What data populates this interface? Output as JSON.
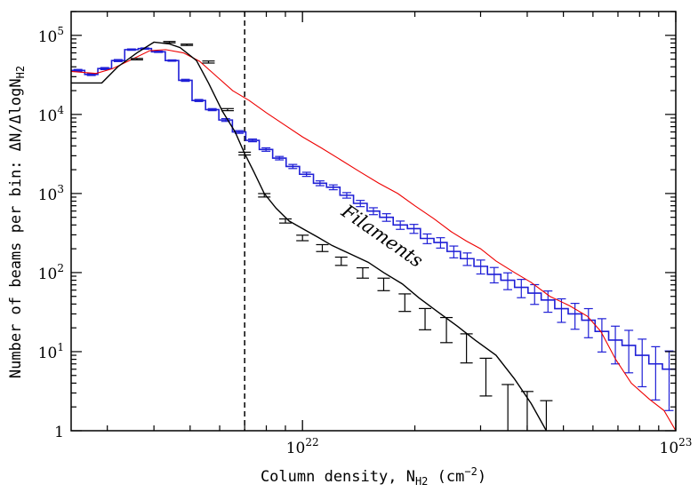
{
  "chart_data": {
    "type": "line",
    "title": "",
    "xlabel_main": "Column density, N",
    "xlabel_sub": "H2",
    "xlabel_units": "(cm",
    "xlabel_exp": "−2",
    "xlabel_close": ")",
    "ylabel_main": "Number of beams per bin: ΔN/ΔlogN",
    "ylabel_sub": "H2",
    "x_scale": "log",
    "y_scale": "log",
    "xlim": [
      2.4e+21,
      1e+23
    ],
    "ylim": [
      1,
      200000
    ],
    "x_ticks": [
      {
        "value": 1e+22,
        "base": "10",
        "exp": "22"
      },
      {
        "value": 1e+23,
        "base": "10",
        "exp": "23"
      }
    ],
    "y_ticks": [
      {
        "value": 1,
        "base": "1",
        "exp": ""
      },
      {
        "value": 10,
        "base": "10",
        "exp": "1"
      },
      {
        "value": 100,
        "base": "10",
        "exp": "2"
      },
      {
        "value": 1000,
        "base": "10",
        "exp": "3"
      },
      {
        "value": 10000,
        "base": "10",
        "exp": "4"
      },
      {
        "value": 100000,
        "base": "10",
        "exp": "5"
      }
    ],
    "threshold_line": {
      "x": 7e+21,
      "style": "dashed"
    },
    "annotation": {
      "text": "Filaments",
      "x": 1.6e+22,
      "y": 250,
      "angle": 35
    },
    "series": [
      {
        "name": "blue-histogram",
        "color": "#1f1fd6",
        "style": "step",
        "bin_edges": [
          2.4e+21,
          2.61e+21,
          2.83e+21,
          3.08e+21,
          3.34e+21,
          3.63e+21,
          3.94e+21,
          4.29e+21,
          4.66e+21,
          5.06e+21,
          5.5e+21,
          5.97e+21,
          6.49e+21,
          7.05e+21,
          7.66e+21,
          8.32e+21,
          9.04e+21,
          9.82e+21,
          1.07e+22,
          1.16e+22,
          1.26e+22,
          1.37e+22,
          1.49e+22,
          1.61e+22,
          1.75e+22,
          1.91e+22,
          2.07e+22,
          2.25e+22,
          2.44e+22,
          2.65e+22,
          2.88e+22,
          3.13e+22,
          3.4e+22,
          3.7e+22,
          4.02e+22,
          4.36e+22,
          4.74e+22,
          5.15e+22,
          5.6e+22,
          6.08e+22,
          6.61e+22,
          7.18e+22,
          7.8e+22,
          8.47e+22,
          9.21e+22,
          1e+23
        ],
        "values": [
          36000,
          32000,
          38000,
          48000,
          66000,
          68000,
          62000,
          48000,
          27000,
          15000,
          11500,
          8500,
          6000,
          4700,
          3600,
          2800,
          2200,
          1750,
          1350,
          1200,
          950,
          750,
          600,
          500,
          400,
          360,
          270,
          240,
          185,
          150,
          120,
          95,
          80,
          65,
          55,
          45,
          35,
          30,
          25,
          18,
          14,
          12,
          9,
          7,
          6
        ],
        "errors_rel": [
          0.03,
          0.03,
          0.03,
          0.03,
          0.02,
          0.02,
          0.02,
          0.02,
          0.03,
          0.03,
          0.03,
          0.04,
          0.04,
          0.04,
          0.05,
          0.05,
          0.06,
          0.06,
          0.07,
          0.07,
          0.08,
          0.09,
          0.1,
          0.11,
          0.12,
          0.13,
          0.14,
          0.15,
          0.17,
          0.18,
          0.2,
          0.22,
          0.24,
          0.26,
          0.28,
          0.3,
          0.33,
          0.36,
          0.4,
          0.45,
          0.5,
          0.55,
          0.6,
          0.65,
          0.7
        ]
      },
      {
        "name": "red-curve",
        "color": "#ee0000",
        "style": "line",
        "x": [
          2.4e+21,
          2.8e+21,
          3.1e+21,
          3.5e+21,
          3.9e+21,
          4.3e+21,
          4.8e+21,
          5.3e+21,
          5.9e+21,
          6.5e+21,
          7.2e+21,
          8e+21,
          8.9e+21,
          1e+22,
          1.12e+22,
          1.26e+22,
          1.42e+22,
          1.6e+22,
          1.8e+22,
          2e+22,
          2.25e+22,
          2.5e+22,
          2.75e+22,
          3e+22,
          3.3e+22,
          3.7e+22,
          4.1e+22,
          4.6e+22,
          5.2e+22,
          5.8e+22,
          6.3e+22,
          6.9e+22,
          7.6e+22,
          8.5e+22,
          9.3e+22,
          1e+23
        ],
        "y": [
          35000,
          33000,
          38000,
          50000,
          64000,
          66000,
          60000,
          47000,
          30000,
          20000,
          15000,
          10500,
          7500,
          5200,
          3800,
          2700,
          1900,
          1350,
          1000,
          700,
          480,
          330,
          250,
          200,
          140,
          100,
          75,
          50,
          38,
          28,
          18,
          8,
          4,
          2.5,
          1.8,
          1.0
        ]
      },
      {
        "name": "black-curve",
        "color": "#000000",
        "style": "line",
        "x": [
          2.4e+21,
          2.9e+21,
          3.2e+21,
          3.6e+21,
          4e+21,
          4.4e+21,
          4.7e+21,
          5.2e+21,
          5.6e+21,
          6.1e+21,
          6.6e+21,
          7e+21,
          7.4e+21,
          7.9e+21,
          8.5e+21,
          9.2e+21,
          1e+22,
          1.1e+22,
          1.2e+22,
          1.35e+22,
          1.5e+22,
          1.65e+22,
          1.85e+22,
          2.05e+22,
          2.3e+22,
          2.6e+22,
          2.9e+22,
          3.3e+22,
          3.7e+22,
          4.1e+22,
          4.5e+22
        ],
        "y": [
          25000,
          25000,
          40000,
          60000,
          82000,
          78000,
          70000,
          48000,
          25000,
          11000,
          6000,
          3200,
          1900,
          1000,
          650,
          450,
          360,
          280,
          220,
          170,
          135,
          100,
          72,
          48,
          32,
          21,
          14,
          9,
          4.5,
          2.2,
          1.0
        ]
      }
    ],
    "black_markers": [
      {
        "x": 3.6e+21,
        "y": 50000,
        "err_rel": 0.02
      },
      {
        "x": 4.4e+21,
        "y": 82000,
        "err_rel": 0.02
      },
      {
        "x": 4.9e+21,
        "y": 76000,
        "err_rel": 0.02
      },
      {
        "x": 5.6e+21,
        "y": 46000,
        "err_rel": 0.03
      },
      {
        "x": 6.3e+21,
        "y": 11500,
        "err_rel": 0.03
      },
      {
        "x": 7e+21,
        "y": 3200,
        "err_rel": 0.04
      },
      {
        "x": 7.9e+21,
        "y": 950,
        "err_rel": 0.05
      },
      {
        "x": 9e+21,
        "y": 450,
        "err_rel": 0.06
      },
      {
        "x": 1e+22,
        "y": 275,
        "err_rel": 0.08
      },
      {
        "x": 1.13e+22,
        "y": 205,
        "err_rel": 0.1
      },
      {
        "x": 1.27e+22,
        "y": 140,
        "err_rel": 0.12
      },
      {
        "x": 1.45e+22,
        "y": 100,
        "err_rel": 0.15
      },
      {
        "x": 1.65e+22,
        "y": 72,
        "err_rel": 0.18
      },
      {
        "x": 1.88e+22,
        "y": 43,
        "err_rel": 0.25
      },
      {
        "x": 2.13e+22,
        "y": 27,
        "err_rel": 0.3
      },
      {
        "x": 2.43e+22,
        "y": 20,
        "err_rel": 0.35
      },
      {
        "x": 2.75e+22,
        "y": 12,
        "err_rel": 0.4
      },
      {
        "x": 3.1e+22,
        "y": 5.5,
        "err_rel": 0.5
      },
      {
        "x": 3.55e+22,
        "y": 2.4,
        "err_rel": 0.6
      },
      {
        "x": 4e+22,
        "y": 1.9,
        "err_rel": 0.65
      },
      {
        "x": 4.5e+22,
        "y": 1.5,
        "err_rel": 0.6
      }
    ]
  }
}
